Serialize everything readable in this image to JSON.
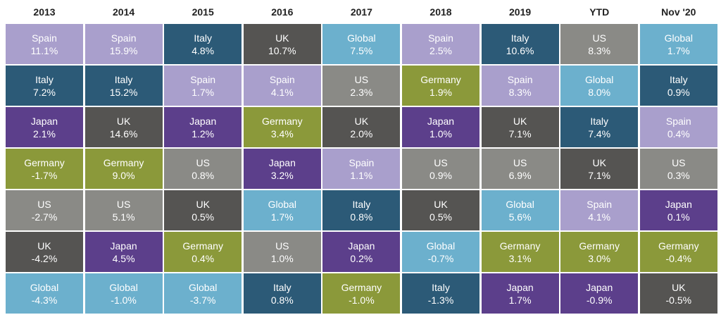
{
  "table": {
    "colors": {
      "Spain": "#a99fcc",
      "Italy": "#2c5a77",
      "Japan": "#5c3f8b",
      "Germany": "#8b993a",
      "US": "#8a8a86",
      "UK": "#555452",
      "Global": "#6cb0cd"
    },
    "columns": [
      {
        "header": "2013",
        "cells": [
          [
            "Spain",
            "11.1%"
          ],
          [
            "Italy",
            "7.2%"
          ],
          [
            "Japan",
            "2.1%"
          ],
          [
            "Germany",
            "-1.7%"
          ],
          [
            "US",
            "-2.7%"
          ],
          [
            "UK",
            "-4.2%"
          ],
          [
            "Global",
            "-4.3%"
          ]
        ]
      },
      {
        "header": "2014",
        "cells": [
          [
            "Spain",
            "15.9%"
          ],
          [
            "Italy",
            "15.2%"
          ],
          [
            "UK",
            "14.6%"
          ],
          [
            "Germany",
            "9.0%"
          ],
          [
            "US",
            "5.1%"
          ],
          [
            "Japan",
            "4.5%"
          ],
          [
            "Global",
            "-1.0%"
          ]
        ]
      },
      {
        "header": "2015",
        "cells": [
          [
            "Italy",
            "4.8%"
          ],
          [
            "Spain",
            "1.7%"
          ],
          [
            "Japan",
            "1.2%"
          ],
          [
            "US",
            "0.8%"
          ],
          [
            "UK",
            "0.5%"
          ],
          [
            "Germany",
            "0.4%"
          ],
          [
            "Global",
            "-3.7%"
          ]
        ]
      },
      {
        "header": "2016",
        "cells": [
          [
            "UK",
            "10.7%"
          ],
          [
            "Spain",
            "4.1%"
          ],
          [
            "Germany",
            "3.4%"
          ],
          [
            "Japan",
            "3.2%"
          ],
          [
            "Global",
            "1.7%"
          ],
          [
            "US",
            "1.0%"
          ],
          [
            "Italy",
            "0.8%"
          ]
        ]
      },
      {
        "header": "2017",
        "cells": [
          [
            "Global",
            "7.5%"
          ],
          [
            "US",
            "2.3%"
          ],
          [
            "UK",
            "2.0%"
          ],
          [
            "Spain",
            "1.1%"
          ],
          [
            "Italy",
            "0.8%"
          ],
          [
            "Japan",
            "0.2%"
          ],
          [
            "Germany",
            "-1.0%"
          ]
        ]
      },
      {
        "header": "2018",
        "cells": [
          [
            "Spain",
            "2.5%"
          ],
          [
            "Germany",
            "1.9%"
          ],
          [
            "Japan",
            "1.0%"
          ],
          [
            "US",
            "0.9%"
          ],
          [
            "UK",
            "0.5%"
          ],
          [
            "Global",
            "-0.7%"
          ],
          [
            "Italy",
            "-1.3%"
          ]
        ]
      },
      {
        "header": "2019",
        "cells": [
          [
            "Italy",
            "10.6%"
          ],
          [
            "Spain",
            "8.3%"
          ],
          [
            "UK",
            "7.1%"
          ],
          [
            "US",
            "6.9%"
          ],
          [
            "Global",
            "5.6%"
          ],
          [
            "Germany",
            "3.1%"
          ],
          [
            "Japan",
            "1.7%"
          ]
        ]
      },
      {
        "header": "YTD",
        "cells": [
          [
            "US",
            "8.3%"
          ],
          [
            "Global",
            "8.0%"
          ],
          [
            "Italy",
            "7.4%"
          ],
          [
            "UK",
            "7.1%"
          ],
          [
            "Spain",
            "4.1%"
          ],
          [
            "Germany",
            "3.0%"
          ],
          [
            "Japan",
            "-0.9%"
          ]
        ]
      },
      {
        "header": "Nov '20",
        "cells": [
          [
            "Global",
            "1.7%"
          ],
          [
            "Italy",
            "0.9%"
          ],
          [
            "Spain",
            "0.4%"
          ],
          [
            "US",
            "0.3%"
          ],
          [
            "Japan",
            "0.1%"
          ],
          [
            "Germany",
            "-0.4%"
          ],
          [
            "UK",
            "-0.5%"
          ]
        ]
      }
    ]
  }
}
